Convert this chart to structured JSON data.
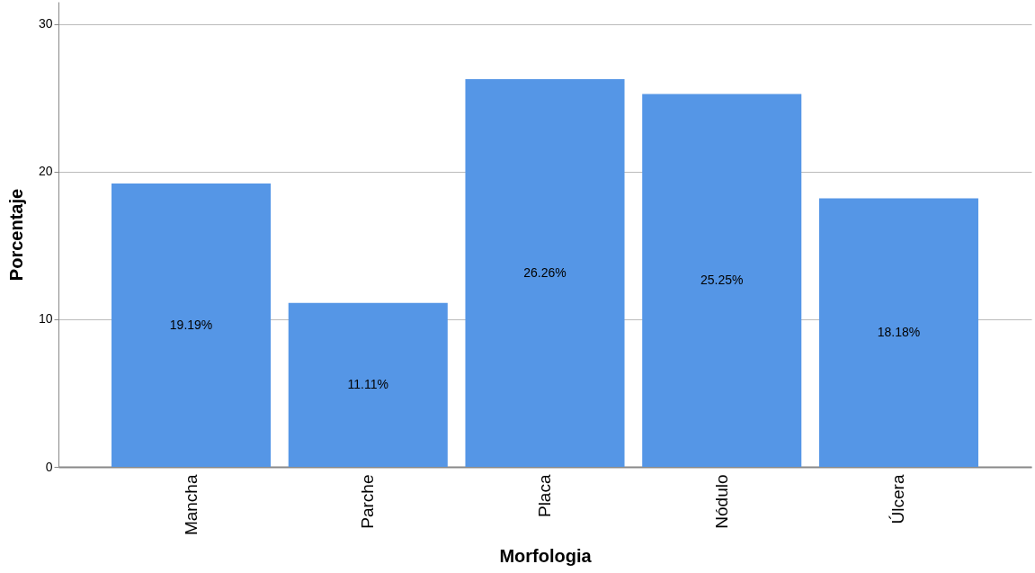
{
  "chart_data": {
    "type": "bar",
    "xlabel": "Morfologia",
    "ylabel": "Porcentaje",
    "categories": [
      "Mancha",
      "Parche",
      "Placa",
      "Nódulo",
      "Úlcera"
    ],
    "values": [
      19.19,
      11.11,
      26.26,
      25.25,
      18.18
    ],
    "value_labels": [
      "19.19%",
      "11.11%",
      "26.26%",
      "25.25%",
      "18.18%"
    ],
    "color": "#5596e6",
    "ylim": [
      0,
      31.5
    ],
    "yticks": [
      0,
      10,
      20,
      30
    ],
    "grid": "y"
  }
}
